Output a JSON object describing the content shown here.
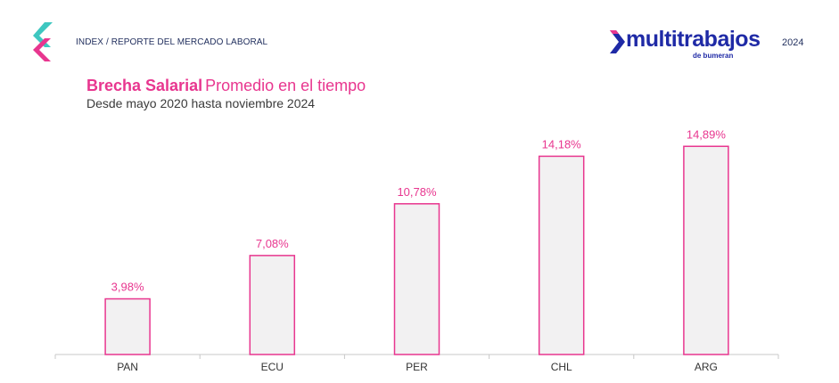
{
  "header": {
    "label": "INDEX / REPORTE DEL MERCADO LABORAL",
    "brand_name": "multitrabajos",
    "brand_sub": "de bumeran",
    "year": "2024"
  },
  "colors": {
    "accent": "#e8368f",
    "bar_fill": "#f2f1f2",
    "axis": "#c8c8c8",
    "brand_blue": "#1f2aa6",
    "logo_teal": "#3ec7c0"
  },
  "icons": {
    "index_logo": "index-chevron-logo",
    "brand_mark": "multitrabajos-chevron-logo"
  },
  "chart_data": {
    "type": "bar",
    "title": "Brecha Salarial",
    "title_rest": "Promedio en el tiempo",
    "subtitle": "Desde mayo 2020 hasta noviembre 2024",
    "categories": [
      "PAN",
      "ECU",
      "PER",
      "CHL",
      "ARG"
    ],
    "values": [
      3.98,
      7.08,
      10.78,
      14.18,
      14.89
    ],
    "value_labels": [
      "3,98%",
      "7,08%",
      "10,78%",
      "14,18%",
      "14,89%"
    ],
    "xlabel": "",
    "ylabel": "",
    "ylim": [
      0,
      15.8
    ],
    "grid": false,
    "legend": "none"
  }
}
